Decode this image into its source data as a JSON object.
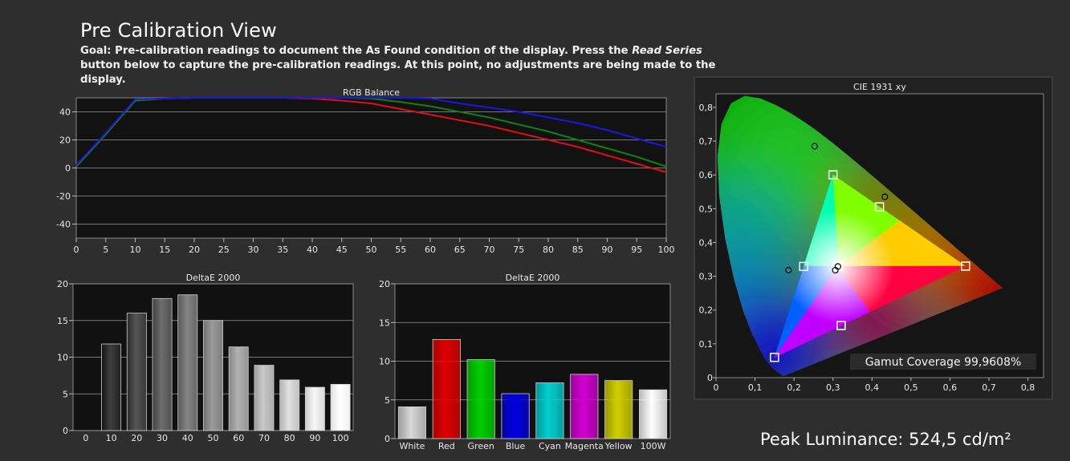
{
  "page": {
    "title": "Pre Calibration View",
    "goal_prefix": "Goal: Pre-calibration readings to document the As Found condition of the display. Press the ",
    "goal_emphasis": "Read Series",
    "goal_suffix": " button below to capture the pre-calibration readings. At this point, no adjustments are being made to the display.",
    "peak_luminance": "Peak Luminance: 524,5 cd/m²"
  },
  "chart_data": [
    {
      "id": "rgb-balance",
      "type": "line",
      "title": "RGB Balance",
      "x": [
        0,
        5,
        10,
        15,
        20,
        25,
        30,
        35,
        40,
        45,
        50,
        55,
        60,
        65,
        70,
        75,
        80,
        85,
        90,
        95,
        100
      ],
      "x_ticks": [
        0,
        5,
        10,
        15,
        20,
        25,
        30,
        35,
        40,
        45,
        50,
        55,
        60,
        65,
        70,
        75,
        80,
        85,
        90,
        95,
        100
      ],
      "y_ticks": [
        40,
        20,
        0,
        -20,
        -40
      ],
      "y_tick_labels": [
        "40",
        "20",
        "0",
        "-20",
        "-40"
      ],
      "xlim": [
        0,
        100
      ],
      "ylim": [
        -50,
        50
      ],
      "grid": true,
      "series": [
        {
          "color": "#e01010",
          "values": [
            1,
            24,
            48,
            49.5,
            50,
            50,
            50,
            50,
            49.5,
            48,
            46,
            42,
            38,
            34,
            30,
            25,
            20,
            15,
            9,
            3,
            -3
          ]
        },
        {
          "color": "#108010",
          "values": [
            1,
            24,
            48,
            49.5,
            50,
            50,
            50,
            50,
            50,
            50,
            49.5,
            47,
            44,
            40,
            36,
            31,
            26,
            20,
            14,
            8,
            1
          ]
        },
        {
          "color": "#1818e0",
          "values": [
            2,
            25,
            49,
            49.5,
            50,
            50,
            50,
            50,
            50,
            50,
            50,
            50,
            49.5,
            46,
            43,
            40,
            36,
            32,
            27,
            21,
            15
          ]
        }
      ]
    },
    {
      "id": "deltae-grayscale",
      "type": "bar",
      "title": "DeltaE 2000",
      "categories": [
        "0",
        "10",
        "20",
        "30",
        "40",
        "50",
        "60",
        "70",
        "80",
        "90",
        "100"
      ],
      "values": [
        0,
        11.8,
        16,
        18,
        18.5,
        15,
        11.4,
        8.9,
        6.9,
        5.9,
        6.3
      ],
      "y_ticks": [
        20,
        15,
        10,
        5,
        0
      ],
      "ylim": [
        0,
        20
      ],
      "grid": true
    },
    {
      "id": "deltae-colors",
      "type": "bar",
      "title": "DeltaE 2000",
      "categories": [
        "White",
        "Red",
        "Green",
        "Blue",
        "Cyan",
        "Magenta",
        "Yellow",
        "100W"
      ],
      "values": [
        4.1,
        12.8,
        10.2,
        5.8,
        7.2,
        8.3,
        7.5,
        6.3
      ],
      "colors": [
        "#d8d8d8",
        "#e00000",
        "#00d000",
        "#0000e0",
        "#00d0d0",
        "#d000d0",
        "#d0d000",
        "#ffffff"
      ],
      "y_ticks": [
        20,
        15,
        10,
        5,
        0
      ],
      "ylim": [
        0,
        20
      ],
      "grid": true
    },
    {
      "id": "cie-1931",
      "type": "scatter",
      "title": "CIE 1931 xy",
      "x_ticks": [
        0,
        0.1,
        0.2,
        0.3,
        0.4,
        0.5,
        0.6,
        0.7,
        0.8
      ],
      "x_tick_labels": [
        "0",
        "0,1",
        "0,2",
        "0,3",
        "0,4",
        "0,5",
        "0,6",
        "0,7",
        "0,8"
      ],
      "y_ticks": [
        0,
        0.1,
        0.2,
        0.3,
        0.4,
        0.5,
        0.6,
        0.7,
        0.8
      ],
      "y_tick_labels": [
        "0",
        "0,1",
        "0,2",
        "0,3",
        "0,4",
        "0,5",
        "0,6",
        "0,7",
        "0,8"
      ],
      "xlim": [
        0,
        0.84
      ],
      "ylim": [
        0,
        0.84
      ],
      "gamut_triangle": {
        "red": [
          0.64,
          0.33
        ],
        "green": [
          0.3,
          0.6
        ],
        "blue": [
          0.15,
          0.06
        ]
      },
      "targets": [
        [
          0.64,
          0.33
        ],
        [
          0.3,
          0.6
        ],
        [
          0.15,
          0.06
        ],
        [
          0.3127,
          0.329
        ],
        [
          0.225,
          0.329
        ],
        [
          0.4193,
          0.5053
        ],
        [
          0.3209,
          0.1542
        ]
      ],
      "measured": [
        [
          0.253,
          0.685
        ],
        [
          0.433,
          0.535
        ],
        [
          0.186,
          0.318
        ],
        [
          0.306,
          0.318
        ],
        [
          0.3127,
          0.329
        ]
      ],
      "annotation": "Gamut Coverage 99,9608%"
    }
  ]
}
